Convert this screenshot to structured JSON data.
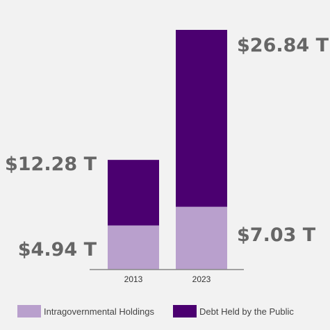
{
  "chart_data": {
    "type": "bar",
    "stacked": true,
    "categories": [
      "2013",
      "2023"
    ],
    "series": [
      {
        "name": "Intragovernmental Holdings",
        "values": [
          4.94,
          7.03
        ],
        "color": "#b9a0cd"
      },
      {
        "name": "Debt Held by the Public",
        "values": [
          7.34,
          19.81
        ],
        "color": "#4b0070"
      }
    ],
    "data_labels": {
      "totals": [
        "$12.28 T",
        "$26.84 T"
      ],
      "intragovernmental": [
        "$4.94 T",
        "$7.03 T"
      ]
    },
    "title": "",
    "xlabel": "",
    "ylabel": "",
    "ylim": [
      0,
      27.5
    ],
    "legend_position": "bottom",
    "grid": false,
    "axis_color": "#888888",
    "label_color": "#666666"
  }
}
